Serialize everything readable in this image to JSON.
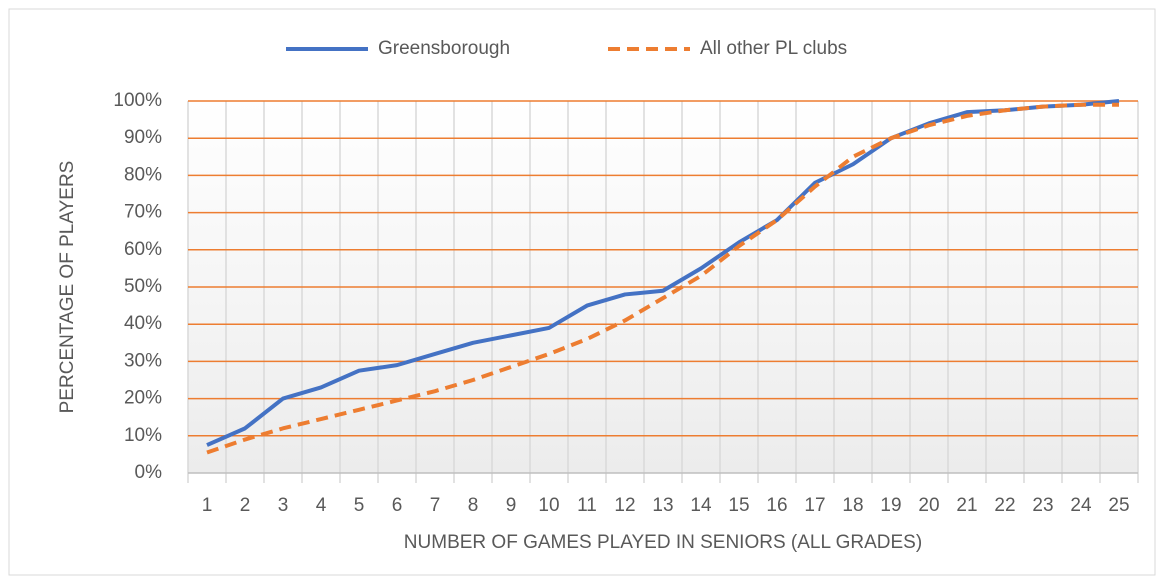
{
  "chart_data": {
    "type": "line",
    "categories": [
      "1",
      "2",
      "3",
      "4",
      "5",
      "6",
      "7",
      "8",
      "9",
      "10",
      "11",
      "12",
      "13",
      "14",
      "15",
      "16",
      "17",
      "18",
      "19",
      "20",
      "21",
      "22",
      "23",
      "24",
      "25"
    ],
    "series": [
      {
        "name": "Greensborough",
        "color": "#4472c4",
        "dash": false,
        "values": [
          7.5,
          12,
          20,
          23,
          27.5,
          29,
          32,
          35,
          37,
          39,
          45,
          48,
          49,
          55,
          62,
          68,
          78,
          83,
          90,
          94,
          97,
          97.5,
          98.5,
          99,
          100
        ]
      },
      {
        "name": "All other PL clubs",
        "color": "#ed7d31",
        "dash": true,
        "values": [
          5.5,
          9,
          12,
          14.5,
          17,
          19.5,
          22,
          25,
          28.5,
          32,
          36,
          41,
          47,
          53,
          61,
          68,
          77,
          85,
          90,
          93.5,
          96,
          97.5,
          98.5,
          99,
          99
        ]
      }
    ],
    "xlabel": "NUMBER OF GAMES PLAYED IN SENIORS (ALL GRADES)",
    "ylabel": "PERCENTAGE OF PLAYERS",
    "ylim": [
      0,
      100
    ],
    "yticks": [
      {
        "value": 0,
        "label": "0%"
      },
      {
        "value": 10,
        "label": "10%"
      },
      {
        "value": 20,
        "label": "20%"
      },
      {
        "value": 30,
        "label": "30%"
      },
      {
        "value": 40,
        "label": "40%"
      },
      {
        "value": 50,
        "label": "50%"
      },
      {
        "value": 60,
        "label": "60%"
      },
      {
        "value": 70,
        "label": "70%"
      },
      {
        "value": 80,
        "label": "80%"
      },
      {
        "value": 90,
        "label": "90%"
      },
      {
        "value": 100,
        "label": "100%"
      }
    ],
    "grid": true,
    "grid_color": "#ed7d31",
    "legend": "top"
  }
}
